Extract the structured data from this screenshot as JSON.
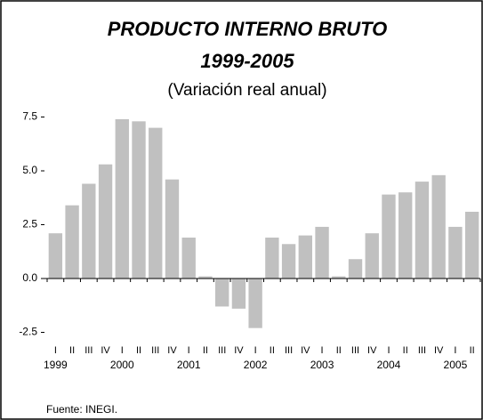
{
  "chart_data": {
    "type": "bar",
    "title": "PRODUCTO INTERNO BRUTO",
    "subtitle": "1999-2005",
    "subtitle2": "(Variación real anual)",
    "source": "Fuente: INEGI.",
    "categories": [
      "I",
      "II",
      "III",
      "IV",
      "I",
      "II",
      "III",
      "IV",
      "I",
      "II",
      "III",
      "IV",
      "I",
      "II",
      "III",
      "IV",
      "I",
      "II",
      "III",
      "IV",
      "I",
      "II",
      "III",
      "IV",
      "I",
      "II"
    ],
    "years": [
      "1999",
      "2000",
      "2001",
      "2002",
      "2003",
      "2004",
      "2005"
    ],
    "values": [
      2.1,
      3.4,
      4.4,
      5.3,
      7.4,
      7.3,
      7.0,
      4.6,
      1.9,
      0.1,
      -1.3,
      -1.4,
      -2.3,
      1.9,
      1.6,
      2.0,
      2.4,
      0.1,
      0.9,
      2.1,
      3.9,
      4.0,
      4.5,
      4.8,
      2.4,
      3.1
    ],
    "color": "#c0c0c0",
    "ylim": [
      -3,
      8
    ],
    "yticks": [
      {
        "value": 7.5,
        "label": "7.5"
      },
      {
        "value": 5,
        "label": "5.0"
      },
      {
        "value": 2.5,
        "label": "2.5"
      },
      {
        "value": 0,
        "label": "0.0"
      },
      {
        "value": -2.5,
        "label": "-2.5"
      }
    ]
  }
}
